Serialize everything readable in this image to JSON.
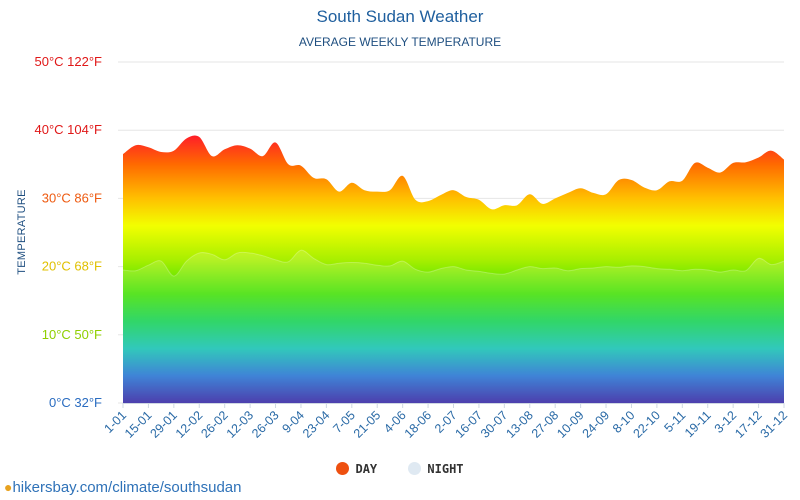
{
  "chart_data": {
    "type": "area",
    "title": "South Sudan Weather",
    "subtitle": "AVERAGE WEEKLY TEMPERATURE",
    "ylabel": "TEMPERATURE",
    "ylim": [
      0,
      50
    ],
    "y_ticks": [
      {
        "value": 0,
        "label": "0°C 32°F",
        "color": "#2a6cc0"
      },
      {
        "value": 10,
        "label": "10°C 50°F",
        "color": "#8fcf00"
      },
      {
        "value": 20,
        "label": "20°C 68°F",
        "color": "#e0c000"
      },
      {
        "value": 30,
        "label": "30°C 86°F",
        "color": "#ee5a10"
      },
      {
        "value": 40,
        "label": "40°C 104°F",
        "color": "#e01818"
      },
      {
        "value": 50,
        "label": "50°C 122°F",
        "color": "#e01818"
      }
    ],
    "x_tick_labels": [
      "1-01",
      "15-01",
      "29-01",
      "12-02",
      "26-02",
      "12-03",
      "26-03",
      "9-04",
      "23-04",
      "7-05",
      "21-05",
      "4-06",
      "18-06",
      "2-07",
      "16-07",
      "30-07",
      "13-08",
      "27-08",
      "10-09",
      "24-09",
      "8-10",
      "22-10",
      "5-11",
      "19-11",
      "3-12",
      "17-12",
      "31-12"
    ],
    "grid": true,
    "legend_position": "bottom-center",
    "series": [
      {
        "name": "DAY",
        "color": "#ee5010",
        "values": [
          36.5,
          37.8,
          37.5,
          36.8,
          37.0,
          38.8,
          39.0,
          36.2,
          37.2,
          37.8,
          37.3,
          36.2,
          38.2,
          35.0,
          34.8,
          33.0,
          32.8,
          31.0,
          32.3,
          31.2,
          31.0,
          31.2,
          33.3,
          29.8,
          29.6,
          30.5,
          31.2,
          30.2,
          29.8,
          28.4,
          29.0,
          29.0,
          30.6,
          29.2,
          30.0,
          30.8,
          31.5,
          30.8,
          30.6,
          32.7,
          32.7,
          31.6,
          31.2,
          32.5,
          32.6,
          35.2,
          34.5,
          33.8,
          35.2,
          35.3,
          36.0,
          37.0,
          35.7
        ]
      },
      {
        "name": "NIGHT",
        "color": "#dfe9f2",
        "values": [
          19.5,
          19.4,
          20.2,
          20.8,
          18.6,
          20.8,
          22.0,
          21.8,
          21.0,
          22.0,
          22.0,
          21.6,
          21.0,
          20.7,
          22.4,
          21.2,
          20.3,
          20.5,
          20.6,
          20.5,
          20.2,
          20.1,
          20.8,
          19.6,
          19.2,
          19.7,
          20.0,
          19.5,
          19.3,
          19.0,
          18.9,
          19.5,
          20.0,
          19.7,
          19.8,
          19.4,
          19.7,
          19.8,
          20.0,
          19.9,
          20.1,
          20.0,
          19.7,
          19.6,
          19.4,
          19.6,
          19.5,
          19.2,
          19.5,
          19.4,
          21.2,
          20.3,
          20.8
        ]
      }
    ]
  },
  "legend": {
    "day_label": "DAY",
    "day_color": "#ee5010",
    "night_label": "NIGHT",
    "night_color": "#dfe9f2"
  },
  "source_text": "hikersbay.com/climate/southsudan"
}
